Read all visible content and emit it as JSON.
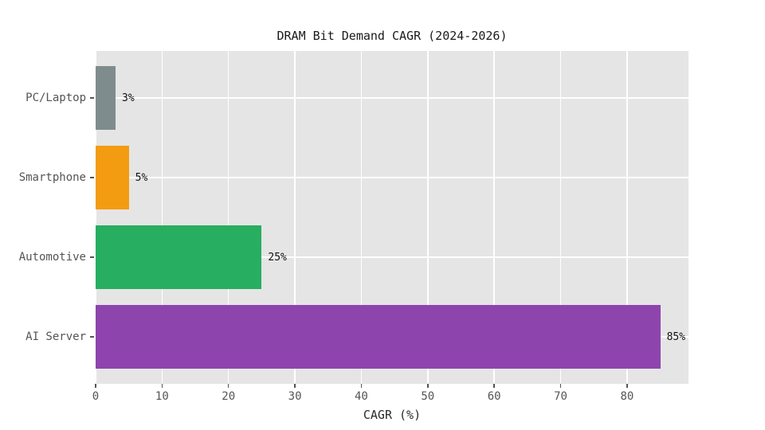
{
  "page": {
    "background_color": "#ffffff"
  },
  "chart_data": {
    "type": "bar",
    "orientation": "horizontal",
    "title": "DRAM Bit Demand CAGR (2024-2026)",
    "xlabel": "CAGR (%)",
    "ylabel": "",
    "categories": [
      "PC/Laptop",
      "Smartphone",
      "Automotive",
      "AI Server"
    ],
    "values": [
      3,
      5,
      25,
      85
    ],
    "value_labels": [
      "3%",
      "5%",
      "25%",
      "85%"
    ],
    "bar_colors": [
      "#7f8c8d",
      "#f39c12",
      "#27ae60",
      "#8e44ad"
    ],
    "xticks": [
      0,
      10,
      20,
      30,
      40,
      50,
      60,
      70,
      80
    ],
    "xlim": [
      0,
      89.25
    ],
    "grid": true,
    "grid_color": "#ffffff",
    "plot_background": "#e5e5e5",
    "tick_color": "#555555",
    "tick_label_color": "#545454",
    "legend": "none"
  }
}
